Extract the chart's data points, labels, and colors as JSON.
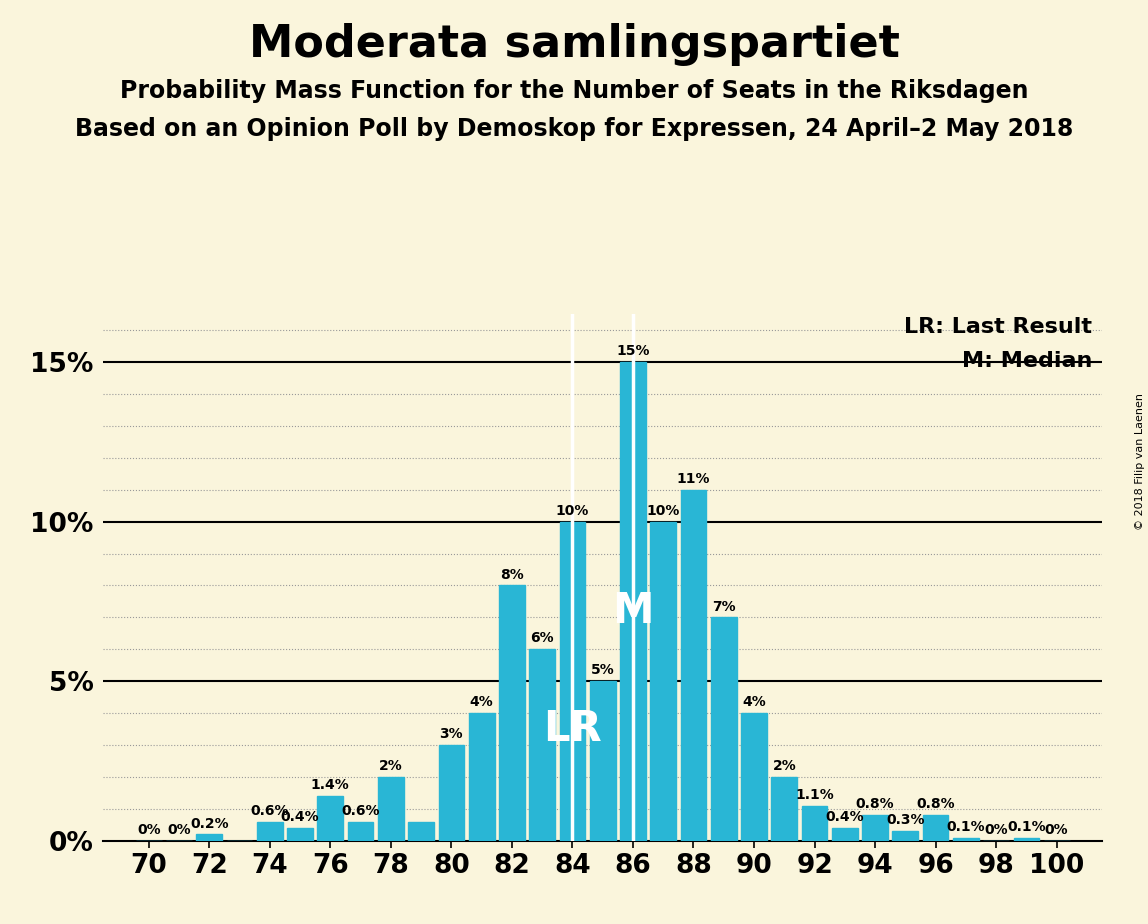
{
  "title": "Moderata samlingspartiet",
  "subtitle1": "Probability Mass Function for the Number of Seats in the Riksdagen",
  "subtitle2": "Based on an Opinion Poll by Demoskop for Expressen, 24 April–2 May 2018",
  "copyright": "© 2018 Filip van Laenen",
  "seats": [
    70,
    71,
    72,
    73,
    74,
    75,
    76,
    77,
    78,
    79,
    80,
    81,
    82,
    83,
    84,
    85,
    86,
    87,
    88,
    89,
    90,
    91,
    92,
    93,
    94,
    95,
    96,
    97,
    98,
    99,
    100
  ],
  "probabilities": [
    0.0,
    0.0,
    0.2,
    0.0,
    0.6,
    0.4,
    1.4,
    0.6,
    2.0,
    0.6,
    3.0,
    4.0,
    8.0,
    6.0,
    10.0,
    5.0,
    15.0,
    10.0,
    11.0,
    7.0,
    4.0,
    2.0,
    1.1,
    0.4,
    0.8,
    0.3,
    0.8,
    0.1,
    0.0,
    0.1,
    0.0
  ],
  "bar_color": "#29B6D5",
  "background_color": "#FAF5DC",
  "lr_seat": 84,
  "median_seat": 86,
  "lr_label": "LR",
  "median_label": "M",
  "legend_lr": "LR: Last Result",
  "legend_m": "M: Median",
  "ylabel_ticks": [
    "0%",
    "5%",
    "10%",
    "15%"
  ],
  "ytick_vals": [
    0,
    5,
    10,
    15
  ],
  "ylim": [
    0,
    16.5
  ],
  "bar_labels": {
    "70": "0%",
    "71": "0%",
    "72": "0.2%",
    "73": "",
    "74": "0.6%",
    "75": "0.4%",
    "76": "1.4%",
    "77": "0.6%",
    "78": "2%",
    "79": "",
    "80": "3%",
    "81": "4%",
    "82": "8%",
    "83": "6%",
    "84": "10%",
    "85": "5%",
    "86": "15%",
    "87": "10%",
    "88": "11%",
    "89": "7%",
    "90": "4%",
    "91": "2%",
    "92": "1.1%",
    "93": "0.4%",
    "94": "0.8%",
    "95": "0.3%",
    "96": "0.8%",
    "97": "0.1%",
    "98": "0%",
    "99": "0.1%",
    "100": "0%"
  },
  "xtick_seats": [
    70,
    72,
    74,
    76,
    78,
    80,
    82,
    84,
    86,
    88,
    90,
    92,
    94,
    96,
    98,
    100
  ],
  "title_fontsize": 32,
  "subtitle_fontsize": 17,
  "bar_label_fontsize": 10,
  "tick_fontsize": 19,
  "legend_fontsize": 16,
  "grid_color": "#999999",
  "solid_line_color": "#000000",
  "lr_line_color": "#FFFFFF",
  "m_line_color": "#FFFFFF"
}
